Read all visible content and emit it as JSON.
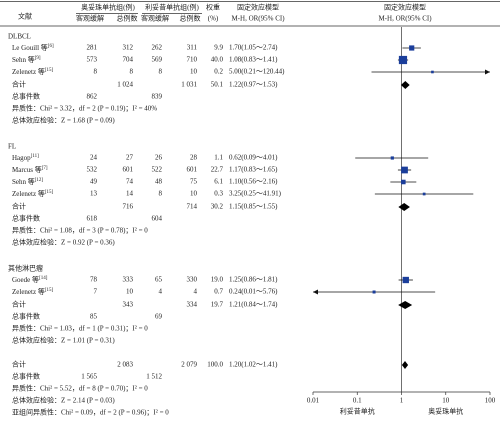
{
  "chart_data": {
    "type": "forest",
    "header": {
      "study": "文献",
      "group1": "奥妥珠单抗组(例)",
      "group2": "利妥昔单抗组(例)",
      "weight": "权重",
      "weight_unit": "(%)",
      "effect": "固定效应模型",
      "effect_method": "M-H, OR(95% CI)",
      "plot_title": "固定效应模型",
      "plot_method": "M-H, OR(95% CI)",
      "events1": "客观缓解",
      "total1": "总例数",
      "events2": "客观缓解",
      "total2": "总例数"
    },
    "subgroups": [
      {
        "name": "DLBCL",
        "studies": [
          {
            "name": "Le Gouill 等",
            "ref": "[6]",
            "events1": 281,
            "total1": 312,
            "events2": 262,
            "total2": 311,
            "weight": 9.9,
            "or": 1.7,
            "lo": 1.05,
            "hi": 2.74,
            "ci_label": "1.70(1.05～2.74)"
          },
          {
            "name": "Sehn 等",
            "ref": "[9]",
            "events1": 573,
            "total1": 704,
            "events2": 569,
            "total2": 710,
            "weight": {
              "value": 40,
              "label": "40.0"
            },
            "or": 1.08,
            "lo": 0.83,
            "hi": 1.41,
            "ci_label": "1.08(0.83～1.41)"
          },
          {
            "name": "Zelenetz 等",
            "ref": "[15]",
            "events1": 8,
            "total1": 8,
            "events2": 8,
            "total2": 10,
            "weight": 0.2,
            "or": 5.0,
            "lo": 0.21,
            "hi": 120.44,
            "ci_label": "5.00(0.21～120.44)"
          }
        ],
        "total": {
          "label": "合计",
          "total1": "1 024",
          "total2": "1 031",
          "weight": 50.1,
          "or": 1.22,
          "lo": 0.97,
          "hi": 1.53,
          "ci_label": "1.22(0.97～1.53)"
        },
        "events": {
          "label": "总事件数",
          "events1": 862,
          "events2": 839
        },
        "heterogeneity": "异质性：Chi² = 3.32，df = 2 (P = 0.19)；I² = 40%",
        "effect_test": "总体效应检验：Z = 1.68 (P = 0.09)"
      },
      {
        "name": "FL",
        "studies": [
          {
            "name": "Hagop",
            "ref": "[11]",
            "events1": 24,
            "total1": 27,
            "events2": 26,
            "total2": 28,
            "weight": 1.1,
            "or": 0.62,
            "lo": 0.09,
            "hi": 4.01,
            "ci_label": "0.62(0.09～4.01)"
          },
          {
            "name": "Marcus 等",
            "ref": "[7]",
            "events1": 532,
            "total1": 601,
            "events2": 522,
            "total2": 601,
            "weight": 22.7,
            "or": 1.17,
            "lo": 0.83,
            "hi": 1.65,
            "ci_label": "1.17(0.83～1.65)"
          },
          {
            "name": "Sehn 等",
            "ref": "[12]",
            "events1": 49,
            "total1": 74,
            "events2": 48,
            "total2": 75,
            "weight": 6.1,
            "or": 1.1,
            "lo": 0.56,
            "hi": 2.16,
            "ci_label": "1.10(0.56～2.16)"
          },
          {
            "name": "Zelenetz 等",
            "ref": "[15]",
            "events1": 13,
            "total1": 14,
            "events2": 8,
            "total2": 10,
            "weight": 0.3,
            "or": 3.25,
            "lo": 0.25,
            "hi": 41.91,
            "ci_label": "3.25(0.25～41.91)"
          }
        ],
        "total": {
          "label": "合计",
          "total1": 716,
          "total2": 714,
          "weight": 30.2,
          "or": 1.15,
          "lo": 0.85,
          "hi": 1.55,
          "ci_label": "1.15(0.85～1.55)"
        },
        "events": {
          "label": "总事件数",
          "events1": 618,
          "events2": 604
        },
        "heterogeneity": "异质性：Chi² = 1.08，df = 3 (P = 0.78)；I² = 0",
        "effect_test": "总体效应检验：Z = 0.92 (P = 0.36)"
      },
      {
        "name": "其他淋巴瘤",
        "studies": [
          {
            "name": "Goede 等",
            "ref": "[14]",
            "events1": 78,
            "total1": 333,
            "events2": 65,
            "total2": 330,
            "weight": {
              "value": 19,
              "label": "19.0"
            },
            "or": 1.25,
            "lo": 0.86,
            "hi": 1.81,
            "ci_label": "1.25(0.86～1.81)"
          },
          {
            "name": "Zelenetz 等",
            "ref": "[15]",
            "events1": 7,
            "total1": 10,
            "events2": 4,
            "total2": 4,
            "weight": 0.7,
            "or": 0.24,
            "lo": 0.01,
            "hi": 5.76,
            "ci_label": "0.24(0.01～5.76)"
          }
        ],
        "total": {
          "label": "合计",
          "total1": 343,
          "total2": 334,
          "weight": 19.7,
          "or": 1.21,
          "lo": 0.84,
          "hi": 1.74,
          "ci_label": "1.21(0.84～1.74)"
        },
        "events": {
          "label": "总事件数",
          "events1": 85,
          "events2": 69
        },
        "heterogeneity": "异质性：Chi² = 1.03，df = 1 (P = 0.31)；I² = 0",
        "effect_test": "总体效应检验：Z = 1.01 (P = 0.31)"
      }
    ],
    "overall": {
      "total": {
        "label": "合计",
        "total1": "2 083",
        "total2": "2 079",
        "weight": {
          "value": 100,
          "label": "100.0"
        },
        "or": 1.2,
        "lo": 1.02,
        "hi": 1.41,
        "ci_label": "1.20(1.02～1.41)"
      },
      "events": {
        "label": "总事件数",
        "events1": "1 565",
        "events2": "1 512"
      },
      "heterogeneity": "异质性：Chi² = 5.52，df = 8 (P = 0.70)；I² = 0",
      "effect_test": "总体效应检验：Z = 2.14 (P = 0.03)",
      "subgroup_difference": "亚组间异质性：Chi² = 0.09，df = 2 (P = 0.96)；I² = 0"
    },
    "xlim": [
      0.01,
      100
    ],
    "xticks": [
      0.01,
      0.1,
      1,
      10,
      100
    ],
    "xscale": "log",
    "favors_left": "利妥昔单抗",
    "favors_right": "奥妥珠单抗",
    "square_color": "#1b3e9b",
    "diamond_color": "#000000"
  }
}
